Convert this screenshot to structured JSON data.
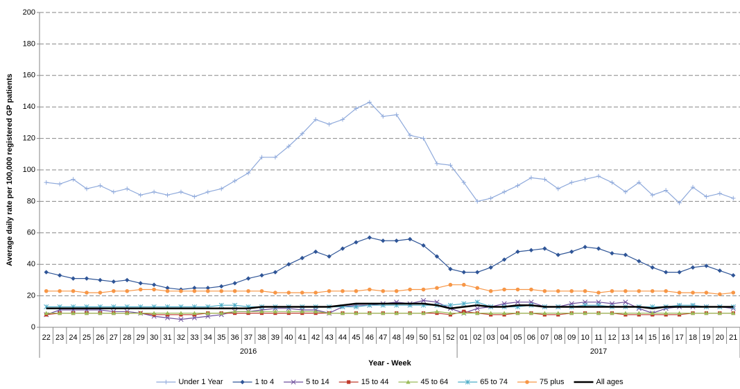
{
  "chart_data": {
    "type": "line",
    "y_label": "Average daily rate per 100,000 registered GP patients",
    "x_label": "Year - Week",
    "groups": [
      "2016",
      "2017"
    ],
    "categories": [
      "22",
      "23",
      "24",
      "25",
      "26",
      "27",
      "28",
      "29",
      "30",
      "31",
      "32",
      "33",
      "34",
      "35",
      "36",
      "37",
      "38",
      "39",
      "40",
      "41",
      "42",
      "43",
      "44",
      "45",
      "46",
      "47",
      "48",
      "49",
      "50",
      "51",
      "52",
      "01",
      "02",
      "03",
      "04",
      "05",
      "06",
      "07",
      "08",
      "09",
      "10",
      "11",
      "12",
      "13",
      "14",
      "15",
      "16",
      "17",
      "18",
      "19",
      "20",
      "21"
    ],
    "ylim": [
      0,
      200
    ],
    "yticks": [
      0,
      20,
      40,
      60,
      80,
      100,
      120,
      140,
      160,
      180,
      200
    ],
    "grid": true,
    "legend": "bottom",
    "series": [
      {
        "name": "Under 1 Year",
        "color": "#8ea9db",
        "marker": "plus",
        "values": [
          92,
          91,
          94,
          88,
          90,
          86,
          88,
          84,
          86,
          84,
          86,
          83,
          86,
          88,
          93,
          98,
          108,
          108,
          115,
          123,
          132,
          129,
          132,
          139,
          143,
          134,
          135,
          122,
          120,
          104,
          103,
          92,
          80,
          82,
          86,
          90,
          95,
          94,
          88,
          92,
          94,
          96,
          92,
          86,
          92,
          84,
          87,
          79,
          89,
          83,
          85,
          82
        ]
      },
      {
        "name": "1 to 4",
        "color": "#2f5597",
        "marker": "diamond",
        "values": [
          35,
          33,
          31,
          31,
          30,
          29,
          30,
          28,
          27,
          25,
          24,
          25,
          25,
          26,
          28,
          31,
          33,
          35,
          40,
          44,
          48,
          45,
          50,
          54,
          57,
          55,
          55,
          56,
          52,
          45,
          37,
          35,
          35,
          38,
          43,
          48,
          49,
          50,
          46,
          48,
          51,
          50,
          47,
          46,
          42,
          38,
          35,
          35,
          38,
          39,
          36,
          33
        ]
      },
      {
        "name": "5 to 14",
        "color": "#6b4c9a",
        "marker": "x",
        "values": [
          8,
          11,
          11,
          11,
          11,
          10,
          10,
          9,
          7,
          6,
          5,
          6,
          7,
          8,
          10,
          10,
          11,
          12,
          12,
          11,
          11,
          9,
          13,
          14,
          14,
          15,
          16,
          15,
          17,
          16,
          12,
          9,
          12,
          13,
          15,
          16,
          16,
          13,
          13,
          15,
          16,
          16,
          15,
          16,
          12,
          9,
          12,
          13,
          13,
          13,
          13,
          12
        ]
      },
      {
        "name": "15 to 44",
        "color": "#c0392b",
        "marker": "square",
        "values": [
          8,
          9,
          9,
          9,
          9,
          9,
          9,
          9,
          8,
          8,
          8,
          8,
          9,
          9,
          9,
          9,
          9,
          9,
          9,
          9,
          9,
          9,
          9,
          9,
          9,
          9,
          9,
          9,
          9,
          9,
          8,
          10,
          9,
          8,
          8,
          9,
          9,
          8,
          8,
          9,
          9,
          9,
          9,
          8,
          8,
          8,
          8,
          8,
          9,
          9,
          9,
          9
        ]
      },
      {
        "name": "45 to 64",
        "color": "#9bbb59",
        "marker": "triangle",
        "values": [
          9,
          9,
          9,
          9,
          9,
          9,
          9,
          9,
          9,
          9,
          9,
          9,
          9,
          9,
          10,
          10,
          10,
          10,
          10,
          10,
          10,
          9,
          9,
          9,
          9,
          9,
          9,
          9,
          9,
          10,
          9,
          9,
          9,
          9,
          9,
          9,
          9,
          9,
          9,
          9,
          9,
          9,
          9,
          9,
          9,
          9,
          9,
          9,
          9,
          9,
          9,
          9
        ]
      },
      {
        "name": "65 to 74",
        "color": "#4bacc6",
        "marker": "asterisk",
        "values": [
          13,
          13,
          13,
          13,
          13,
          13,
          13,
          13,
          13,
          13,
          13,
          13,
          13,
          14,
          14,
          13,
          13,
          13,
          13,
          13,
          13,
          13,
          13,
          13,
          14,
          14,
          14,
          14,
          14,
          14,
          14,
          15,
          16,
          13,
          13,
          13,
          14,
          13,
          13,
          13,
          14,
          14,
          13,
          13,
          13,
          13,
          13,
          14,
          14,
          13,
          13,
          13
        ]
      },
      {
        "name": "75 plus",
        "color": "#f79646",
        "marker": "circle",
        "values": [
          23,
          23,
          23,
          22,
          22,
          23,
          23,
          24,
          24,
          23,
          23,
          23,
          23,
          23,
          23,
          23,
          23,
          22,
          22,
          22,
          22,
          23,
          23,
          23,
          24,
          23,
          23,
          24,
          24,
          25,
          27,
          27,
          25,
          23,
          24,
          24,
          24,
          23,
          23,
          23,
          23,
          22,
          23,
          23,
          23,
          23,
          23,
          22,
          22,
          22,
          21,
          22
        ]
      },
      {
        "name": "All ages",
        "color": "#000000",
        "marker": "none",
        "line_width": 2.5,
        "values": [
          12,
          12,
          12,
          12,
          12,
          12,
          12,
          12,
          12,
          12,
          12,
          12,
          12,
          12,
          12,
          12,
          13,
          13,
          13,
          13,
          13,
          13,
          14,
          15,
          15,
          15,
          15,
          15,
          15,
          14,
          12,
          13,
          14,
          13,
          13,
          14,
          14,
          13,
          13,
          13,
          13,
          13,
          13,
          13,
          13,
          12,
          13,
          13,
          13,
          13,
          13,
          13
        ]
      }
    ]
  }
}
